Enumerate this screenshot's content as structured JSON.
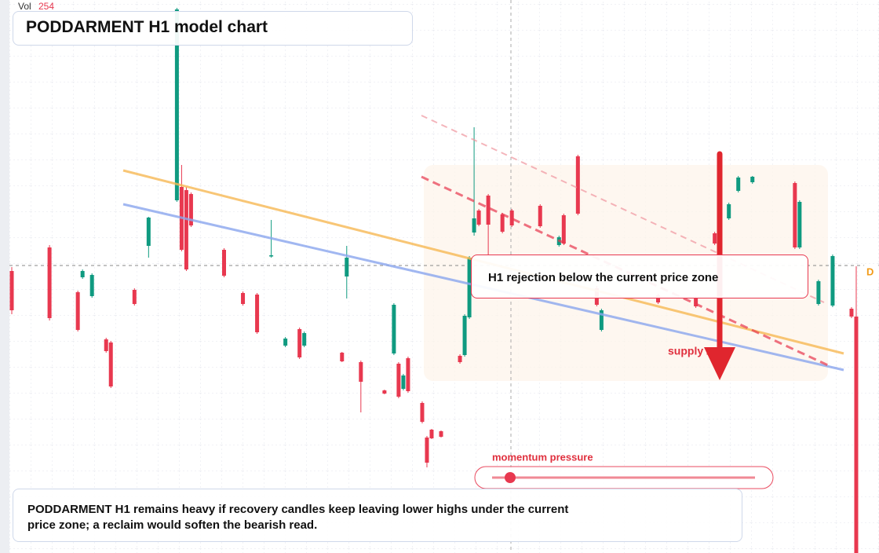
{
  "chart_data": {
    "type": "candlestick",
    "title": "PODDARMENT H1 model chart",
    "volume_label": "Vol",
    "volume_value": 254,
    "zone_label": "supply zone",
    "callout": "H1 rejection below the current price zone",
    "gauge_label": "momentum pressure",
    "price_badge": "D",
    "summary": "PODDARMENT H1 remains heavy if recovery candles keep leaving lower highs under the current price zone; a reclaim would soften the bearish read.",
    "up_color": "#0f9a80",
    "down_color": "#e8384f",
    "xlim": [
      -0.5,
      180.5
    ],
    "ylim": [
      0,
      704
    ],
    "x": [
      0,
      8,
      14,
      15,
      17,
      20,
      21,
      26,
      29,
      35,
      36,
      37,
      38,
      45,
      49,
      52,
      55,
      58,
      61,
      62,
      70,
      71,
      74,
      79,
      81,
      82,
      83,
      84,
      87,
      88,
      89,
      91,
      95,
      96,
      97,
      98,
      99,
      101,
      104,
      106,
      112,
      116,
      117,
      120,
      124,
      125,
      137,
      145,
      149,
      152,
      154,
      157,
      166,
      167,
      171,
      174,
      178,
      179
    ],
    "open": [
      359,
      389,
      332,
      351,
      327,
      272,
      268,
      335,
      391,
      449,
      466,
      462,
      457,
      386,
      331,
      329,
      378,
      264,
      285,
      264,
      255,
      352,
      243,
      207,
      254,
      241,
      209,
      248,
      191,
      147,
      157,
      155,
      251,
      252,
      300,
      408,
      436,
      455,
      431,
      436,
      442,
      392,
      430,
      505,
      337,
      284,
      328,
      325,
      407,
      426,
      461,
      472,
      471,
      389,
      317,
      315,
      311,
      301
    ],
    "high": [
      364,
      392,
      334,
      361,
      356,
      274,
      270,
      337,
      428,
      694,
      494,
      466,
      459,
      388,
      333,
      331,
      424,
      275,
      287,
      282,
      256,
      391,
      245,
      208,
      318,
      243,
      228,
      250,
      193,
      149,
      158,
      156,
      253,
      304,
      378,
      542,
      438,
      457,
      433,
      438,
      444,
      404,
      432,
      507,
      340,
      311,
      330,
      327,
      409,
      446,
      480,
      480,
      473,
      449,
      348,
      380,
      313,
      365
    ],
    "low": [
      304,
      296,
      282,
      349,
      325,
      255,
      210,
      315,
      376,
      447,
      384,
      359,
      415,
      351,
      315,
      279,
      376,
      262,
      247,
      262,
      243,
      324,
      179,
      202,
      252,
      197,
      207,
      204,
      165,
      109,
      145,
      147,
      241,
      250,
      298,
      404,
      416,
      380,
      407,
      415,
      414,
      390,
      392,
      430,
      314,
      282,
      317,
      312,
      392,
      424,
      459,
      470,
      387,
      387,
      315,
      313,
      299,
      0
    ],
    "close": [
      309,
      299,
      284,
      359,
      354,
      257,
      212,
      317,
      427,
      692,
      386,
      361,
      417,
      353,
      317,
      281,
      379,
      273,
      249,
      280,
      244,
      376,
      218,
      203,
      316,
      199,
      226,
      206,
      167,
      115,
      146,
      148,
      243,
      302,
      376,
      426,
      418,
      418,
      409,
      417,
      416,
      402,
      394,
      432,
      316,
      309,
      319,
      314,
      394,
      444,
      478,
      479,
      389,
      447,
      346,
      378,
      301,
      0
    ]
  }
}
